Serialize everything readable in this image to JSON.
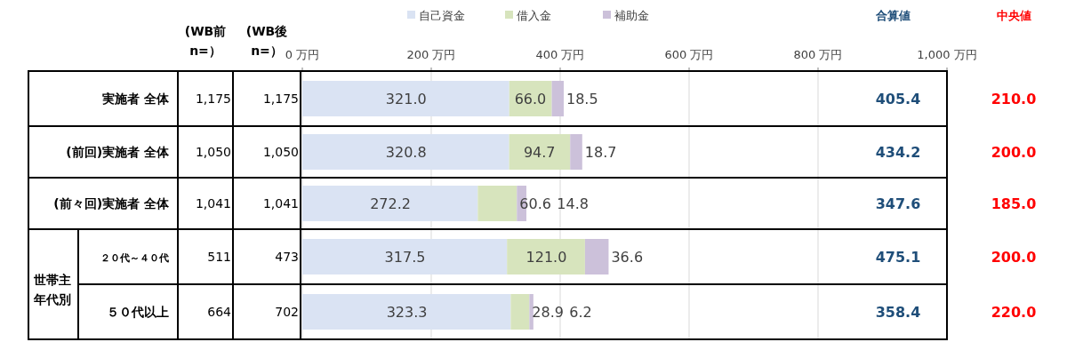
{
  "chart_data": {
    "type": "bar",
    "orientation": "horizontal",
    "stacked": true,
    "legend": "top",
    "grid": "x",
    "categories": [
      "実施者  全体",
      "(前回)実施者  全体",
      "(前々回)実施者  全体",
      "２０代～４０代",
      "５０代以上"
    ],
    "series": [
      {
        "name": "自己資金",
        "color": "#dae3f3",
        "values": [
          321.0,
          320.8,
          272.2,
          317.5,
          323.3
        ],
        "value_labels": [
          "321.0",
          "320.8",
          "272.2",
          "317.5",
          "323.3"
        ]
      },
      {
        "name": "借入金",
        "color": "#d7e4bd",
        "values": [
          66.0,
          94.7,
          60.6,
          121.0,
          28.9
        ],
        "value_labels": [
          "66.0",
          "94.7",
          "60.6",
          "121.0",
          "28.9"
        ]
      },
      {
        "name": "補助金",
        "color": "#ccc1da",
        "values": [
          18.5,
          18.7,
          14.8,
          36.6,
          6.2
        ],
        "value_labels": [
          "18.5",
          "18.7",
          "14.8",
          "36.6",
          "6.2"
        ]
      }
    ],
    "x2lim": [
      0,
      1000
    ],
    "x2ticks": [
      {
        "value": 0,
        "label": "0 万円"
      },
      {
        "value": 200,
        "label": "200 万円"
      },
      {
        "value": 400,
        "label": "400 万円"
      },
      {
        "value": 600,
        "label": "600 万円"
      },
      {
        "value": 800,
        "label": "800 万円"
      },
      {
        "value": 1000,
        "label": "1,000 万円"
      }
    ],
    "annotations": [
      "(WB前 n=）",
      "(WB後 n=）",
      "合算値",
      "中央値",
      "世帯主年代別",
      "1,175",
      "1,050",
      "1,041",
      "511",
      "664",
      "1,175",
      "1,050",
      "1,041",
      "473",
      "702",
      "210.0",
      "200.0",
      "185.0",
      "200.0",
      "220.0",
      "405.4",
      "434.2",
      "347.6",
      "475.1",
      "358.4"
    ]
  }
}
